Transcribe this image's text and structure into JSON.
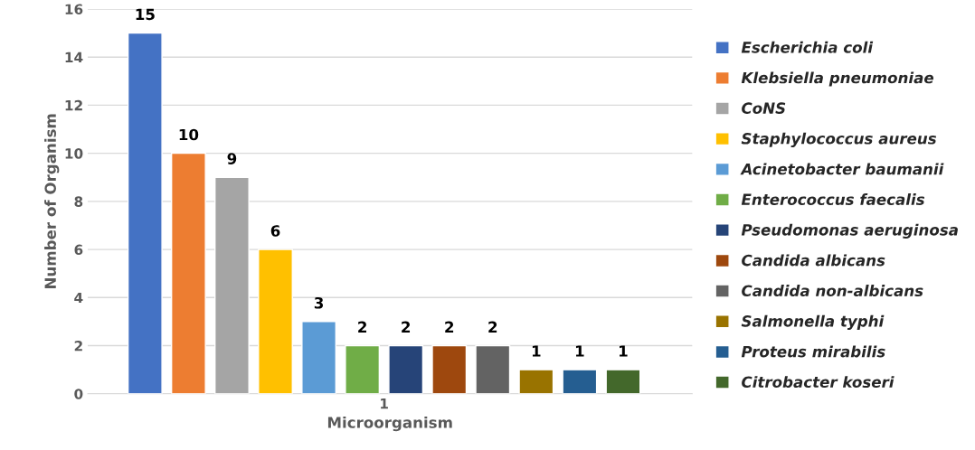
{
  "chart_data": {
    "type": "bar",
    "xlabel": "Microorganism",
    "ylabel": "Number of Organism",
    "categories": [
      "1"
    ],
    "series": [
      {
        "name": "Escherichia coli",
        "color": "#4472c4",
        "values": [
          15
        ]
      },
      {
        "name": "Klebsiella pneumoniae",
        "color": "#ed7d31",
        "values": [
          10
        ]
      },
      {
        "name": "CoNS",
        "color": "#a5a5a5",
        "values": [
          9
        ]
      },
      {
        "name": "Staphylococcus aureus",
        "color": "#ffc000",
        "values": [
          6
        ]
      },
      {
        "name": "Acinetobacter baumanii",
        "color": "#5b9bd5",
        "values": [
          3
        ]
      },
      {
        "name": "Enterococcus faecalis",
        "color": "#70ad47",
        "values": [
          2
        ]
      },
      {
        "name": "Pseudomonas aeruginosa",
        "color": "#264478",
        "values": [
          2
        ]
      },
      {
        "name": "Candida albicans",
        "color": "#9e480e",
        "values": [
          2
        ]
      },
      {
        "name": "Candida non-albicans",
        "color": "#636363",
        "values": [
          2
        ]
      },
      {
        "name": "Salmonella typhi",
        "color": "#997300",
        "values": [
          1
        ]
      },
      {
        "name": "Proteus mirabilis",
        "color": "#255e91",
        "values": [
          1
        ]
      },
      {
        "name": "Citrobacter koseri",
        "color": "#43682b",
        "values": [
          1
        ]
      }
    ],
    "ylim": [
      0,
      16
    ],
    "yticks": [
      0,
      2,
      4,
      6,
      8,
      10,
      12,
      14,
      16
    ],
    "grid": "y",
    "legend": "right",
    "data_labels": true
  }
}
